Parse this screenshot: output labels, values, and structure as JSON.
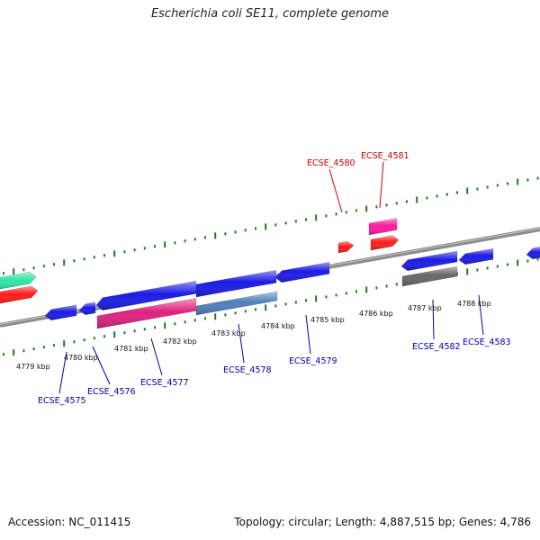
{
  "title": "Escherichia coli SE11, complete genome",
  "accession": "Accession: NC_011415",
  "topology": "Topology: circular; Length: 4,887,515 bp; Genes: 4,786",
  "colors": {
    "forward_cds": "#ff1a1a",
    "forward_pink": "#ff1aa0",
    "reverse_cds": "#1a1ae6",
    "reverse_pink": "#e0217f",
    "steel": "#4f7fb8",
    "teal": "#2ee6a6",
    "gray": "#666666",
    "backbone": "#8c8c8c",
    "ticks": "#1f7a1f",
    "label_forward": "#cc0000",
    "label_reverse": "#0000aa"
  },
  "kbp_labels": [
    "4779 kbp",
    "4780 kbp",
    "4781 kbp",
    "4782 kbp",
    "4783 kbp",
    "4784 kbp",
    "4785 kbp",
    "4786 kbp",
    "4787 kbp",
    "4788 kbp"
  ],
  "gene_labels_forward": [
    "ECSE_4580",
    "ECSE_4581"
  ],
  "gene_labels_reverse": [
    "ECSE_4575",
    "ECSE_4576",
    "ECSE_4577",
    "ECSE_4578",
    "ECSE_4579",
    "ECSE_4582",
    "ECSE_4583"
  ]
}
